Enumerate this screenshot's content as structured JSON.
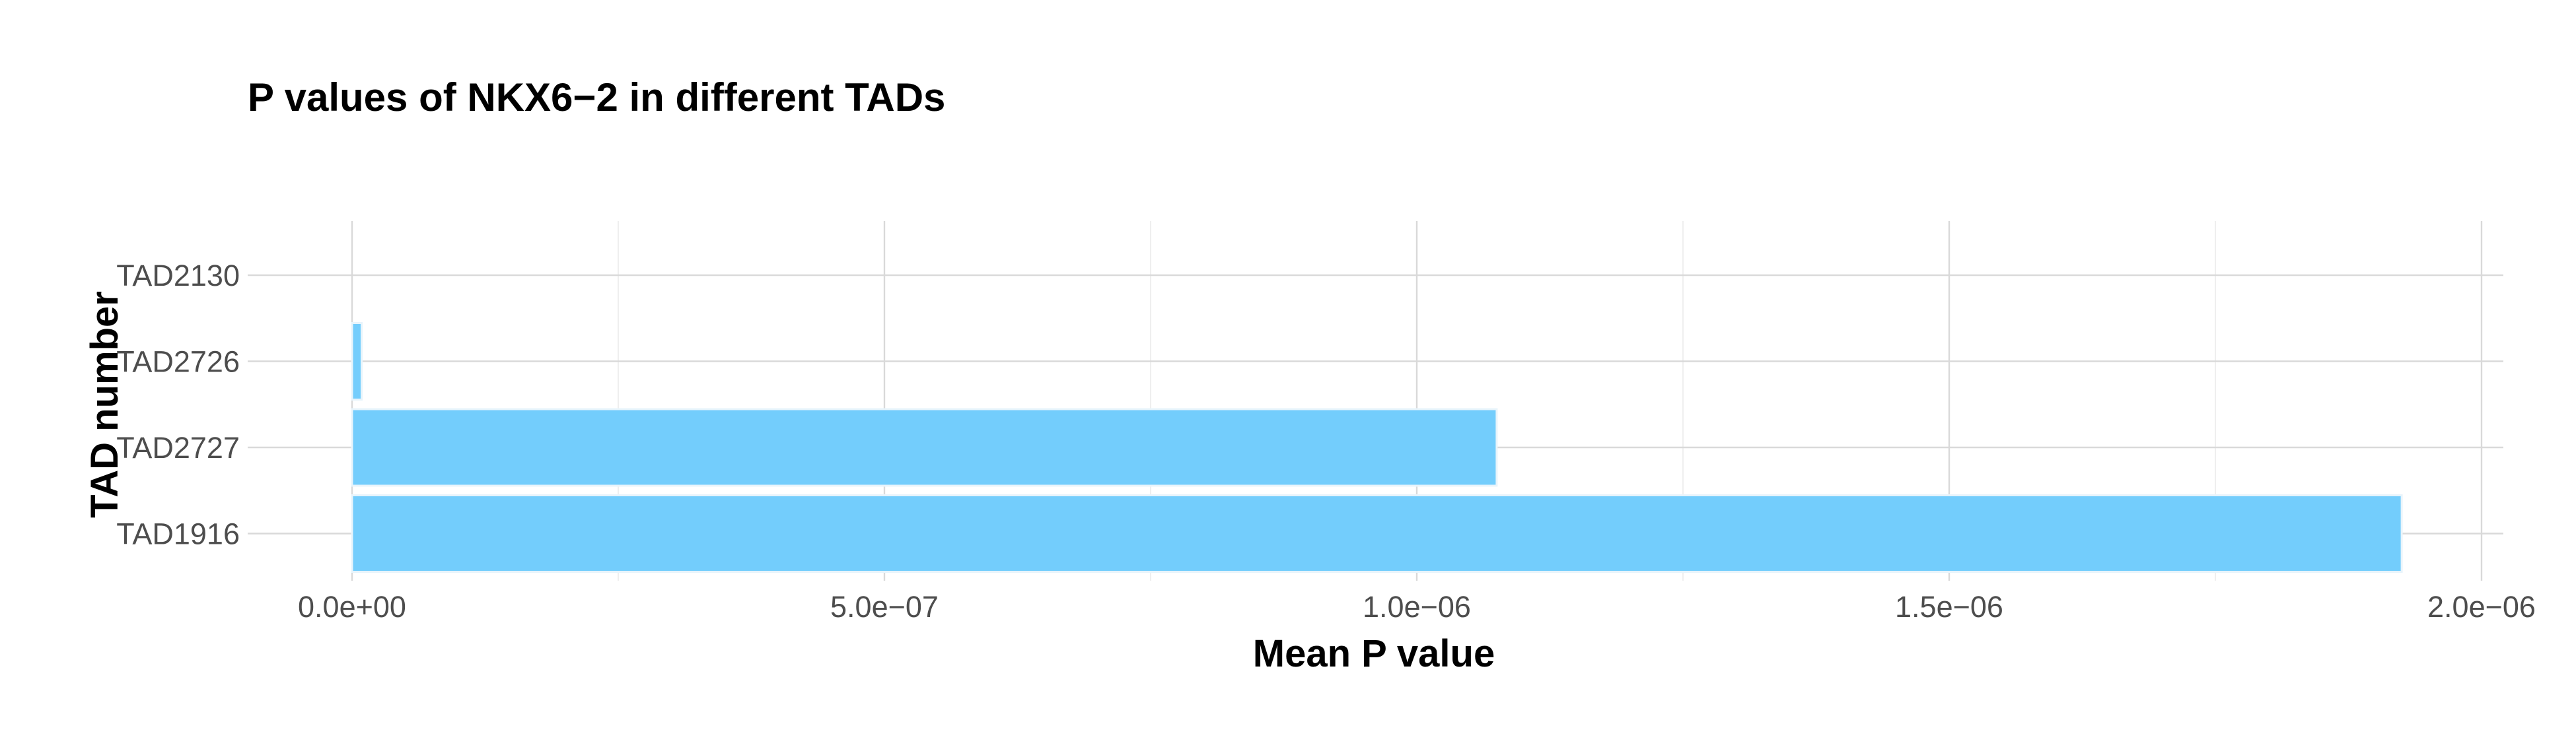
{
  "chart_data": {
    "type": "bar",
    "orientation": "horizontal",
    "title": "P values of NKX6−2 in different TADs",
    "xlabel": "Mean P value",
    "ylabel": "TAD number",
    "categories": [
      "TAD2130",
      "TAD2726",
      "TAD2727",
      "TAD1916"
    ],
    "values": [
      0.0,
      9e-09,
      1.075e-06,
      1.925e-06
    ],
    "xlim": [
      0,
      2e-06
    ],
    "x_ticks": [
      0,
      5e-07,
      1e-06,
      1.5e-06,
      2e-06
    ],
    "x_tick_labels": [
      "0.0e+00",
      "5.0e−07",
      "1.0e−06",
      "1.5e−06",
      "2.0e−06"
    ],
    "grid": true,
    "bar_color": "#73cdfc",
    "legend": "none"
  }
}
